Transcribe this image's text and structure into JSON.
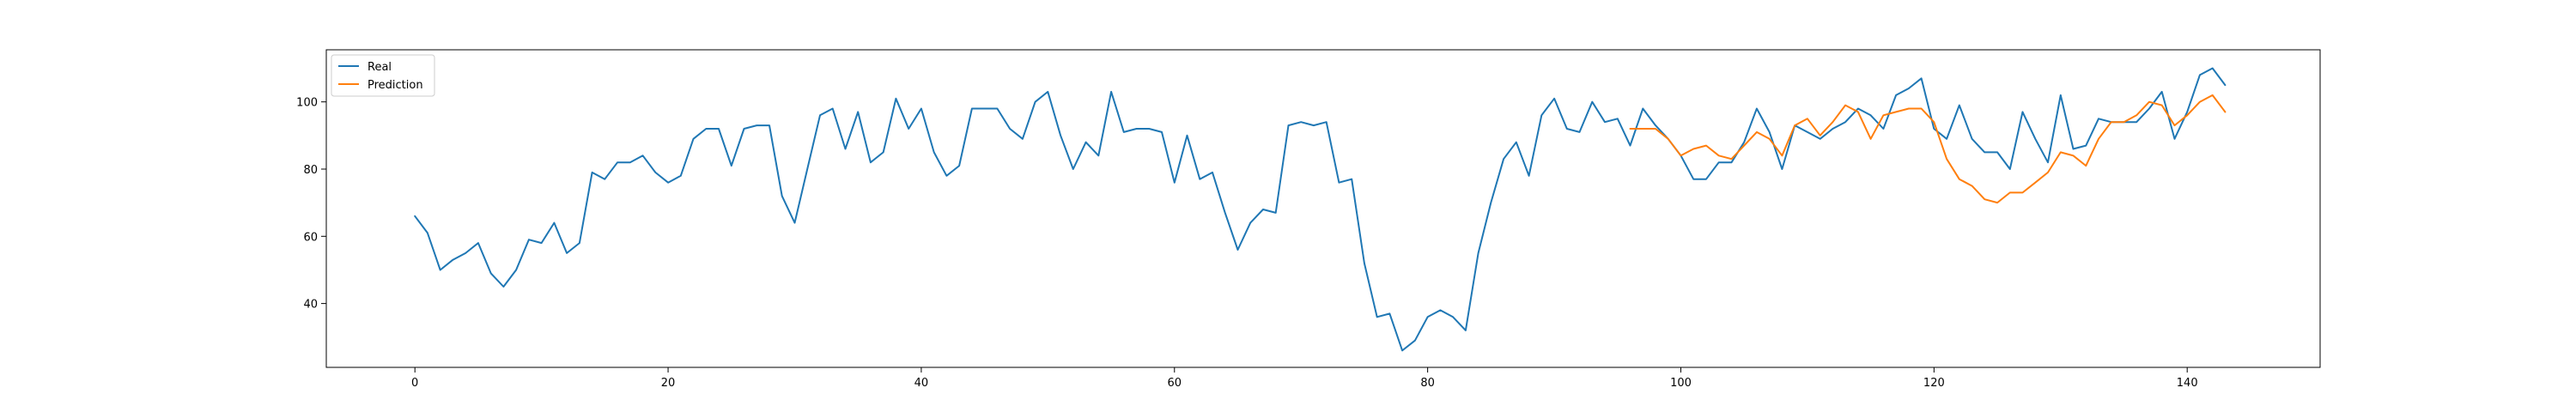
{
  "chart_data": {
    "type": "line",
    "title": "",
    "xlabel": "",
    "ylabel": "",
    "xlim": [
      -7,
      150.5
    ],
    "ylim": [
      21,
      115.5
    ],
    "xticks": [
      0,
      20,
      40,
      60,
      80,
      100,
      120,
      140
    ],
    "yticks": [
      40,
      60,
      80,
      100
    ],
    "grid": false,
    "legend": {
      "location": "upper-left",
      "entries": [
        "Real",
        "Prediction"
      ]
    },
    "series": [
      {
        "name": "Real",
        "color": "#1f77b4",
        "x_start": 0,
        "values": [
          66,
          61,
          50,
          53,
          55,
          58,
          49,
          45,
          50,
          59,
          58,
          64,
          55,
          58,
          79,
          77,
          82,
          82,
          84,
          79,
          76,
          78,
          89,
          92,
          92,
          81,
          92,
          93,
          93,
          72,
          64,
          80,
          96,
          98,
          86,
          97,
          82,
          85,
          101,
          92,
          98,
          85,
          78,
          81,
          98,
          98,
          98,
          92,
          89,
          100,
          103,
          90,
          80,
          88,
          84,
          103,
          91,
          92,
          92,
          91,
          76,
          90,
          77,
          79,
          67,
          56,
          64,
          68,
          67,
          93,
          94,
          93,
          94,
          76,
          77,
          52,
          36,
          37,
          26,
          29,
          36,
          38,
          36,
          32,
          55,
          70,
          83,
          88,
          78,
          96,
          101,
          92,
          91,
          100,
          94,
          95,
          87,
          98,
          93,
          89,
          84,
          77,
          77,
          82,
          82,
          88,
          98,
          91,
          80,
          93,
          91,
          89,
          92,
          94,
          98,
          96,
          92,
          102,
          104,
          107,
          92,
          89,
          99,
          89,
          85,
          85,
          80,
          97,
          89,
          82,
          102,
          86,
          87,
          95,
          94,
          94,
          94,
          98,
          103,
          89,
          97,
          108,
          110,
          105
        ]
      },
      {
        "name": "Prediction",
        "color": "#ff7f0e",
        "x_start": 96,
        "values": [
          92,
          92,
          92,
          89,
          84,
          86,
          87,
          84,
          83,
          87,
          91,
          89,
          84,
          93,
          95,
          90,
          94,
          99,
          97,
          89,
          96,
          97,
          98,
          98,
          94,
          83,
          77,
          75,
          71,
          70,
          73,
          73,
          76,
          79,
          85,
          84,
          81,
          89,
          94,
          94,
          96,
          100,
          99,
          93,
          96,
          100,
          102,
          97
        ]
      }
    ]
  }
}
